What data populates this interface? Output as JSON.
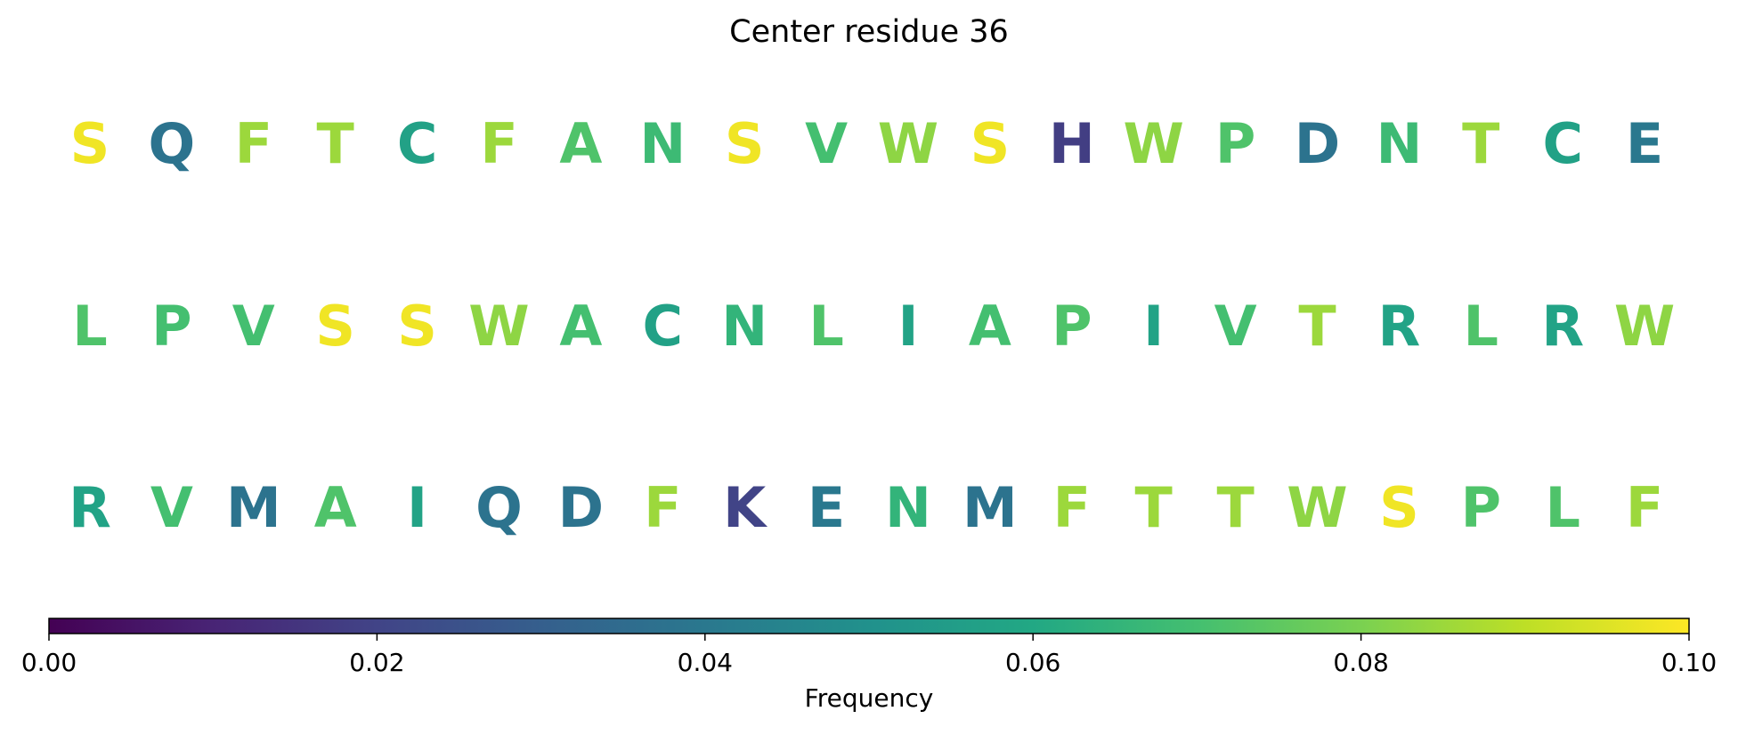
{
  "chart_data": {
    "type": "letter-grid",
    "title": "Center residue 36",
    "colormap": "viridis",
    "letters": [
      [
        "S",
        "Q",
        "F",
        "T",
        "C",
        "F",
        "A",
        "N",
        "S",
        "V",
        "W",
        "S",
        "H",
        "W",
        "P",
        "D",
        "N",
        "T",
        "C",
        "E"
      ],
      [
        "L",
        "P",
        "V",
        "S",
        "S",
        "W",
        "A",
        "C",
        "N",
        "L",
        "I",
        "A",
        "P",
        "I",
        "V",
        "T",
        "R",
        "L",
        "R",
        "W"
      ],
      [
        "R",
        "V",
        "M",
        "A",
        "I",
        "Q",
        "D",
        "F",
        "K",
        "E",
        "N",
        "M",
        "F",
        "T",
        "T",
        "W",
        "S",
        "P",
        "L",
        "F"
      ]
    ],
    "values": [
      [
        0.098,
        0.038,
        0.085,
        0.085,
        0.057,
        0.085,
        0.072,
        0.068,
        0.098,
        0.07,
        0.083,
        0.098,
        0.018,
        0.083,
        0.072,
        0.038,
        0.068,
        0.085,
        0.057,
        0.04
      ],
      [
        0.072,
        0.07,
        0.07,
        0.098,
        0.098,
        0.083,
        0.07,
        0.057,
        0.065,
        0.072,
        0.058,
        0.07,
        0.072,
        0.058,
        0.07,
        0.085,
        0.058,
        0.072,
        0.058,
        0.083
      ],
      [
        0.058,
        0.07,
        0.038,
        0.072,
        0.058,
        0.038,
        0.038,
        0.085,
        0.02,
        0.04,
        0.065,
        0.038,
        0.085,
        0.085,
        0.085,
        0.083,
        0.098,
        0.072,
        0.072,
        0.085
      ]
    ],
    "colorbar_label": "Frequency",
    "clim": [
      0,
      0.1
    ],
    "cticks": [
      {
        "value": 0,
        "label": "0.00"
      },
      {
        "value": 0.02,
        "label": "0.02"
      },
      {
        "value": 0.04,
        "label": "0.04"
      },
      {
        "value": 0.06,
        "label": "0.06"
      },
      {
        "value": 0.08,
        "label": "0.08"
      },
      {
        "value": 0.1,
        "label": "0.10"
      }
    ]
  }
}
